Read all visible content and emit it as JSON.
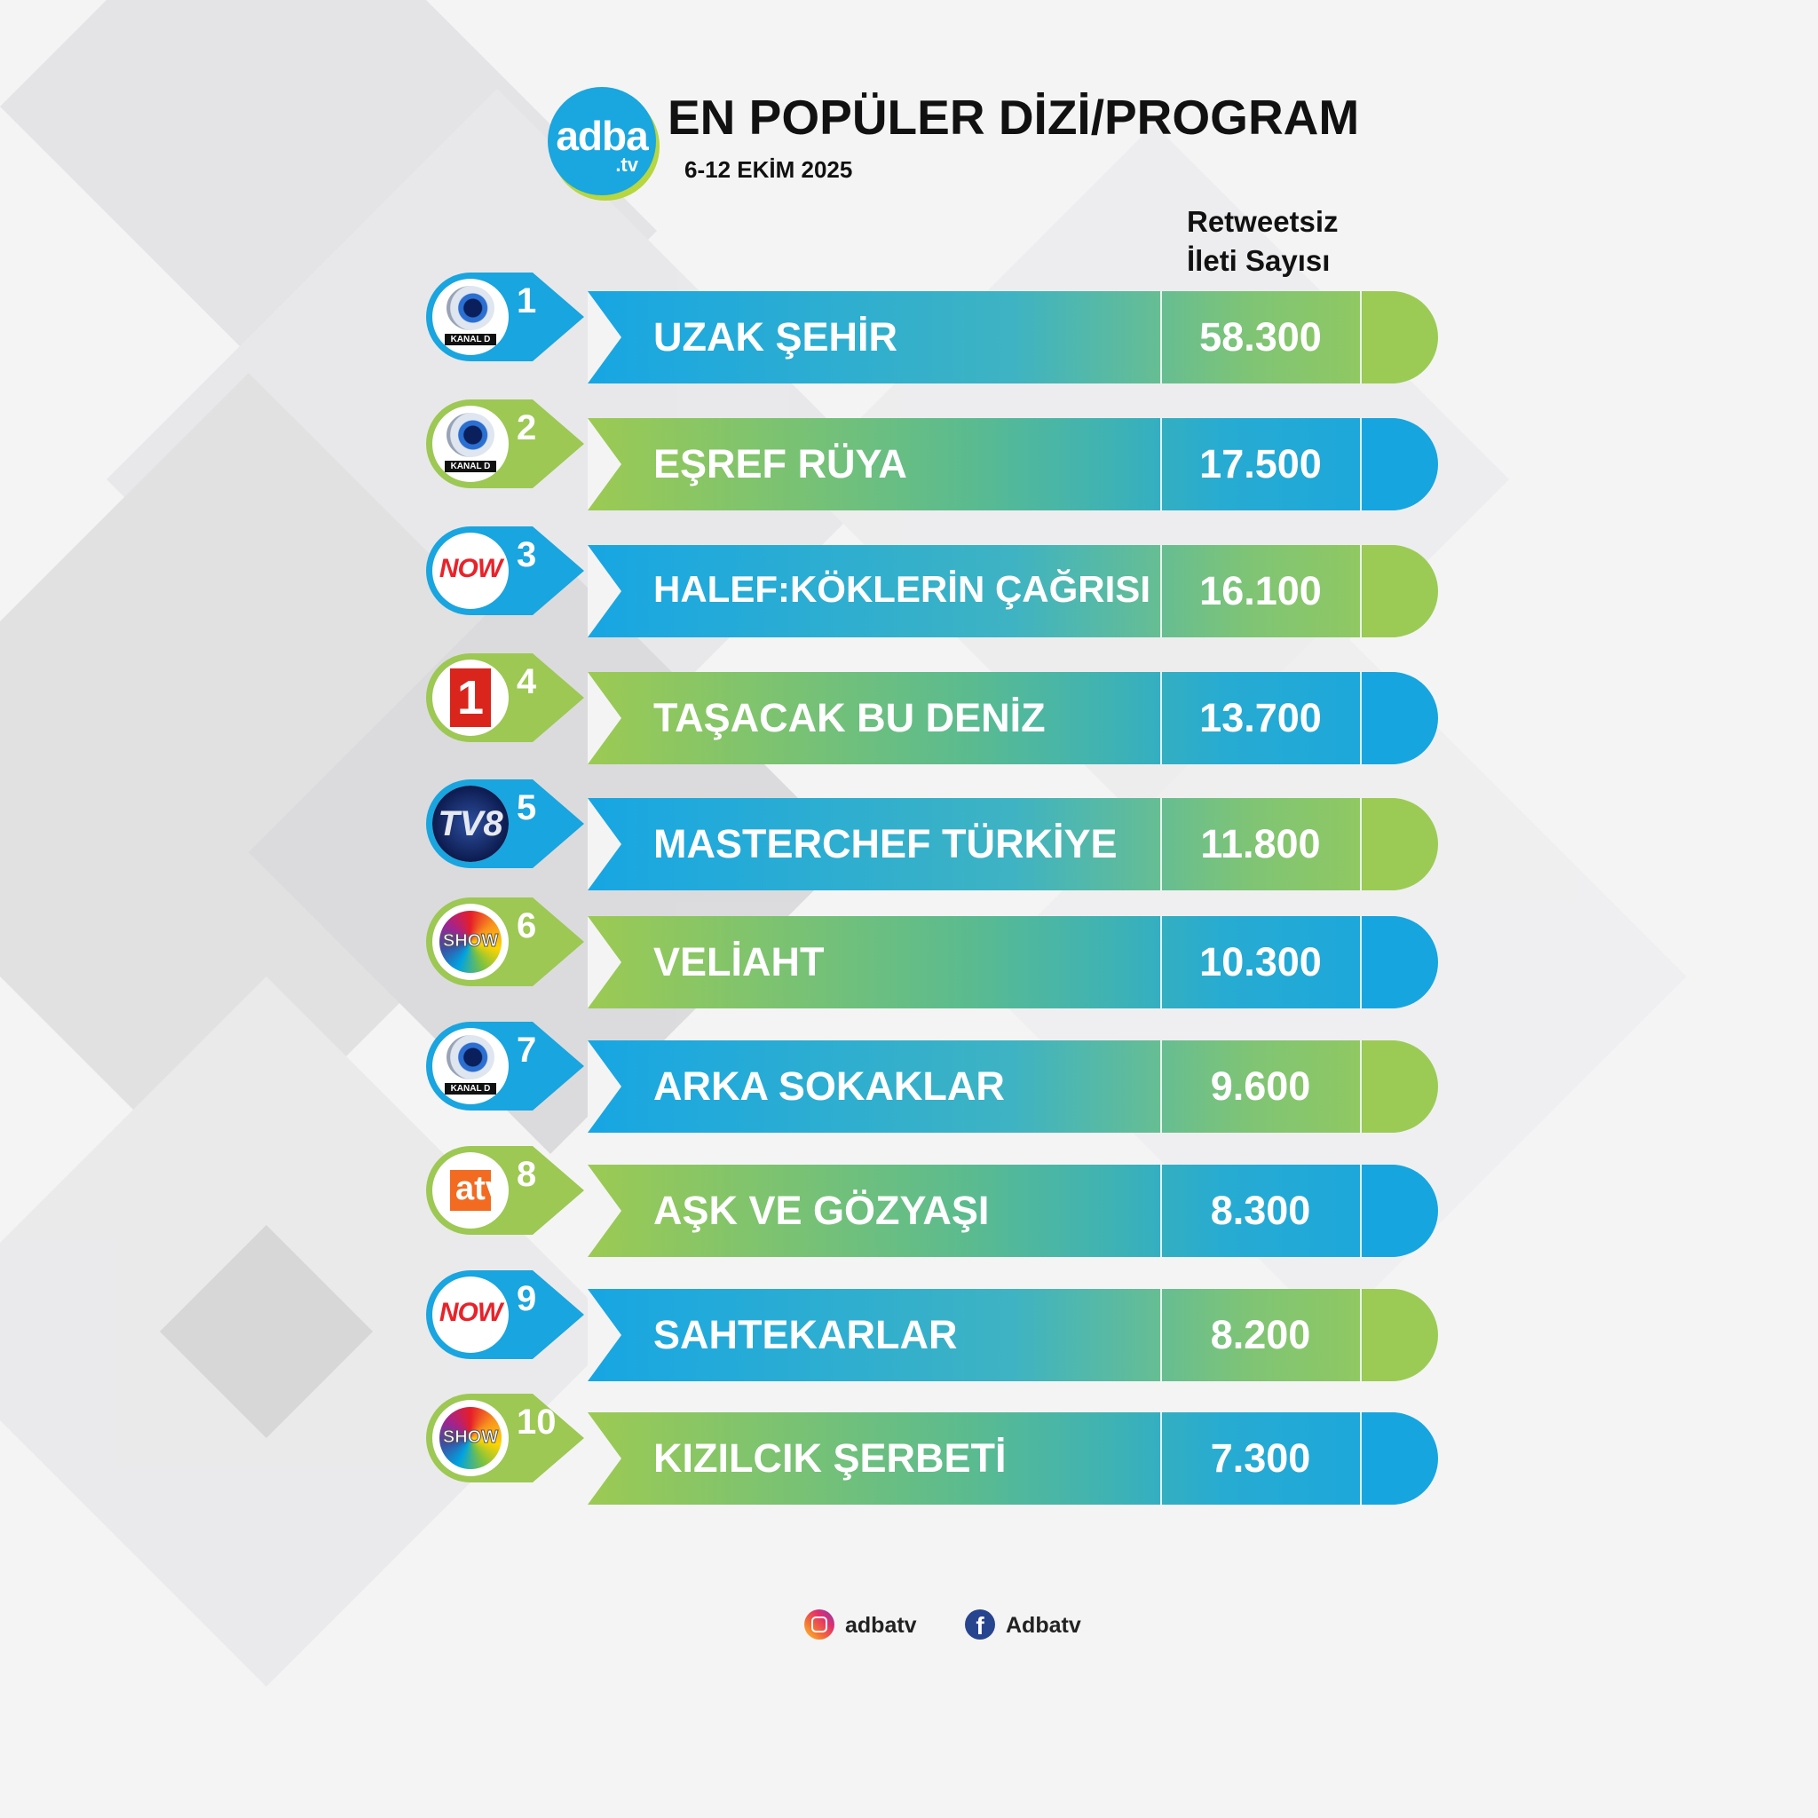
{
  "header": {
    "logo_main": "adba",
    "logo_sub": ".tv",
    "title": "EN POPÜLER DİZİ/PROGRAM",
    "date_range": "6-12 EKİM 2025",
    "column_header_line1": "Retweetsiz",
    "column_header_line2": "İleti Sayısı"
  },
  "ranking": [
    {
      "rank": "1",
      "channel": "KANAL D",
      "title": "UZAK ŞEHİR",
      "count": "58.300"
    },
    {
      "rank": "2",
      "channel": "KANAL D",
      "title": "EŞREF RÜYA",
      "count": "17.500"
    },
    {
      "rank": "3",
      "channel": "NOW",
      "title": "HALEF:KÖKLERİN ÇAĞRISI",
      "count": "16.100"
    },
    {
      "rank": "4",
      "channel": "1",
      "title": "TAŞACAK BU DENİZ",
      "count": "13.700"
    },
    {
      "rank": "5",
      "channel": "TV8",
      "title": "MASTERCHEF TÜRKİYE",
      "count": "11.800"
    },
    {
      "rank": "6",
      "channel": "SHOW",
      "title": "VELİAHT",
      "count": "10.300"
    },
    {
      "rank": "7",
      "channel": "KANAL D",
      "title": "ARKA SOKAKLAR",
      "count": "9.600"
    },
    {
      "rank": "8",
      "channel": "atv",
      "title": "AŞK VE GÖZYAŞI",
      "count": "8.300"
    },
    {
      "rank": "9",
      "channel": "NOW",
      "title": "SAHTEKARLAR",
      "count": "8.200"
    },
    {
      "rank": "10",
      "channel": "SHOW",
      "title": "KIZILCIK ŞERBETİ",
      "count": "7.300"
    }
  ],
  "footer": {
    "instagram_icon": "instagram-icon",
    "instagram_handle": "adbatv",
    "facebook_icon": "facebook-icon",
    "facebook_glyph": "f",
    "facebook_handle": "Adbatv"
  },
  "colors": {
    "blue": "#19a5df",
    "green": "#9dc853"
  }
}
